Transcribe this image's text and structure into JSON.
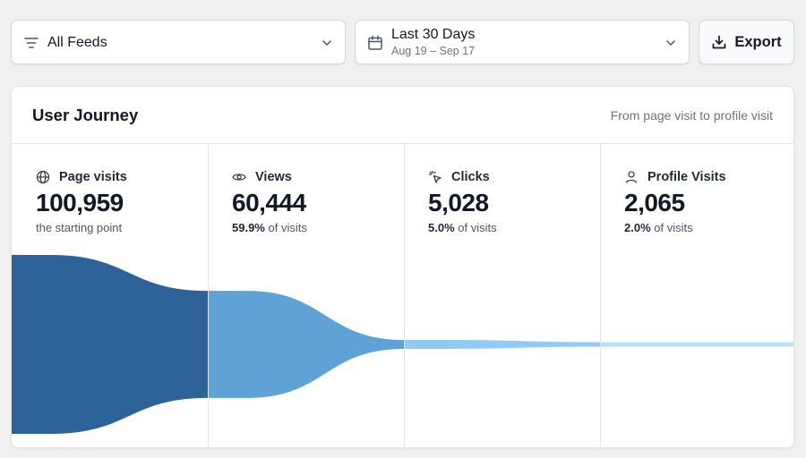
{
  "toolbar": {
    "feeds": {
      "label": "All Feeds",
      "icon": "filter-icon"
    },
    "date_range": {
      "label": "Last 30 Days",
      "sub": "Aug 19 – Sep 17",
      "icon": "calendar-icon"
    },
    "export": {
      "label": "Export",
      "icon": "download-icon"
    }
  },
  "card": {
    "title": "User Journey",
    "subtitle": "From page visit to profile visit"
  },
  "stages": [
    {
      "name": "Page visits",
      "icon": "globe-icon",
      "value": "100,959",
      "pct": "",
      "note": "the starting point",
      "count": 100959,
      "color": "#2e6399"
    },
    {
      "name": "Views",
      "icon": "eye-icon",
      "value": "60,444",
      "pct": "59.9%",
      "note": " of visits",
      "count": 60444,
      "color": "#5fa2d6"
    },
    {
      "name": "Clicks",
      "icon": "cursor-click-icon",
      "value": "5,028",
      "pct": "5.0%",
      "note": " of visits",
      "count": 5028,
      "color": "#91caf4"
    },
    {
      "name": "Profile Visits",
      "icon": "user-icon",
      "value": "2,065",
      "pct": "2.0%",
      "note": " of visits",
      "count": 2065,
      "color": "#b8defa"
    }
  ]
}
